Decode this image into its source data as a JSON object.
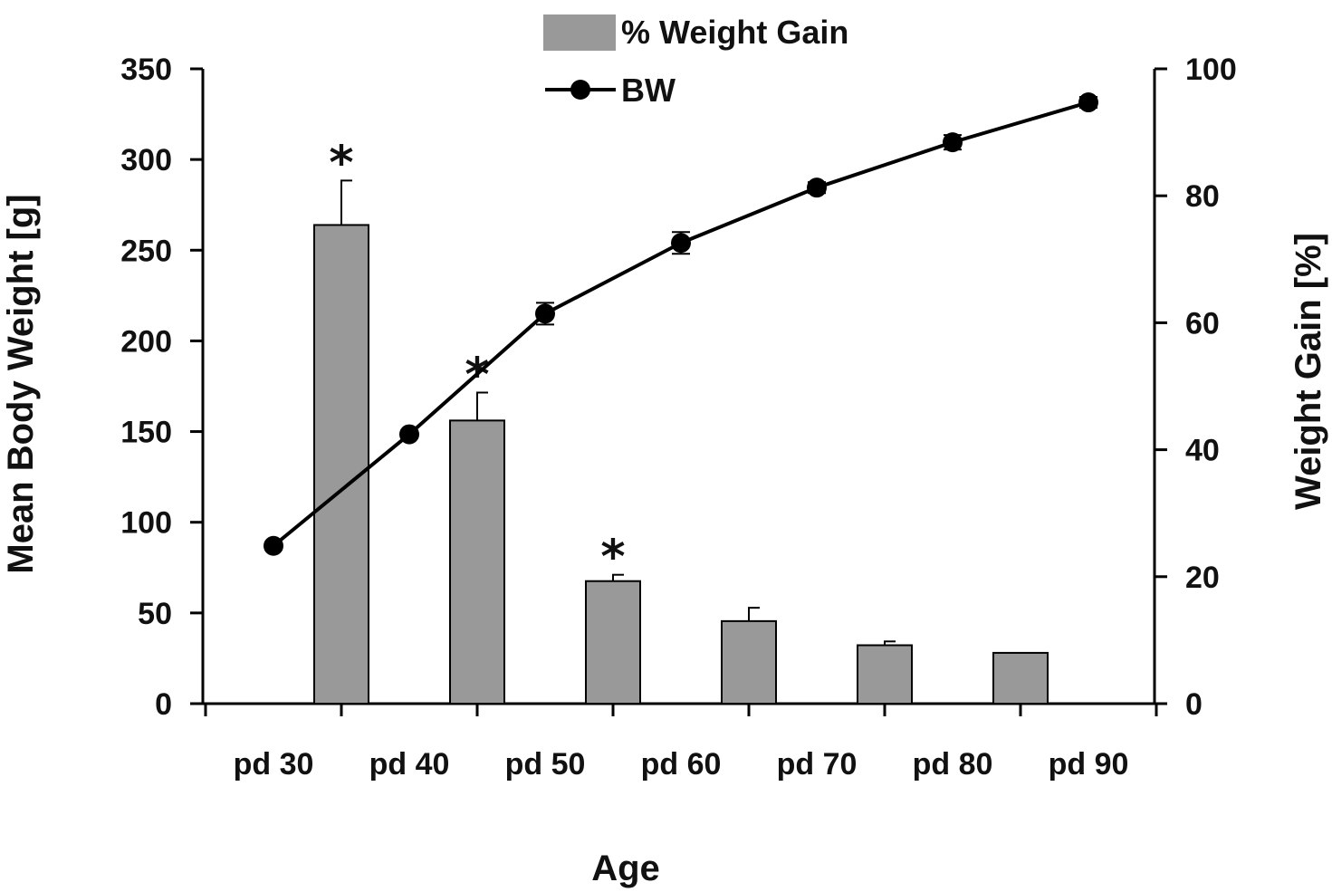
{
  "chart_data": {
    "type": "bar+line",
    "categories": [
      "pd 30",
      "pd 40",
      "pd 50",
      "pd 60",
      "pd 70",
      "pd 80",
      "pd 90"
    ],
    "x_title": "Age",
    "left_axis": {
      "label": "Mean Body Weight [g]",
      "range": [
        0,
        350
      ],
      "ticks": [
        "0",
        "50",
        "100",
        "150",
        "200",
        "250",
        "300",
        "350"
      ]
    },
    "right_axis": {
      "label": "Weight Gain [%]",
      "range": [
        0,
        100
      ],
      "ticks": [
        "0",
        "20",
        "40",
        "60",
        "80",
        "100"
      ]
    },
    "legend": {
      "bar_label": "% Weight Gain",
      "line_label": "BW",
      "position": "top-center"
    },
    "bar_series": {
      "name": "% Weight Gain",
      "axis": "right",
      "positions": [
        0.5,
        1.5,
        2.5,
        3.5,
        4.5,
        5.5
      ],
      "values": [
        75.4,
        44.6,
        19.3,
        13.0,
        9.2,
        8.0
      ],
      "errors": [
        7.0,
        4.4,
        1.0,
        2.1,
        0.6,
        0.0
      ],
      "significant": [
        true,
        true,
        true,
        false,
        false,
        false
      ],
      "significance_marker": "*"
    },
    "line_series": {
      "name": "BW",
      "axis": "left",
      "positions": [
        0,
        1,
        2,
        3,
        4,
        5,
        6
      ],
      "values": [
        87,
        148.5,
        215,
        254,
        284.5,
        309.5,
        331.5
      ],
      "errors": [
        2,
        2,
        6,
        6,
        3,
        4,
        3
      ]
    },
    "colors": {
      "bar": "#999999",
      "line": "#000000"
    }
  }
}
